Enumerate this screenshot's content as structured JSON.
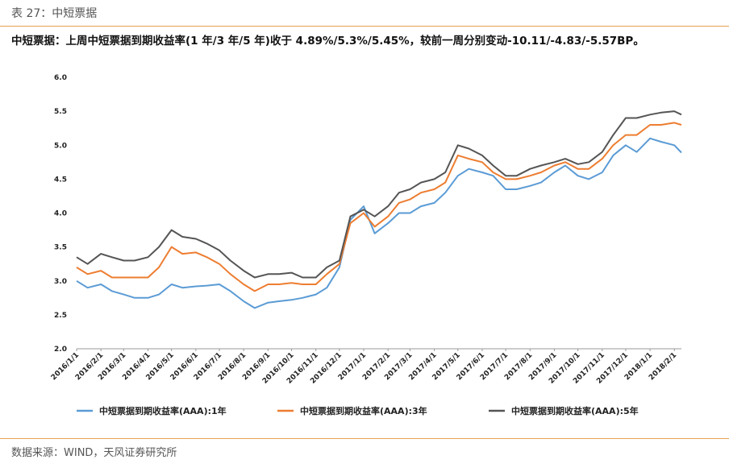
{
  "caption": "表 27：中短票据",
  "headline": "中短票据：上周中短票据到期收益率(1 年/3 年/5 年)收于 4.89%/5.3%/5.45%，较前一周分别变动-10.11/-4.83/-5.57BP。",
  "source": "数据来源：WIND，天风证券研究所",
  "colors": {
    "series1": "#5b9bd5",
    "series2": "#ed7d31",
    "series3": "#555555"
  },
  "chart_data": {
    "type": "line",
    "title": "",
    "xlabel": "",
    "ylabel": "",
    "ylim": [
      2.0,
      6.0
    ],
    "yticks": [
      "6.0",
      "5.5",
      "5.0",
      "4.5",
      "4.0",
      "3.5",
      "3.0",
      "2.5",
      "2.0"
    ],
    "x_ticks": [
      "2016/1/1",
      "2016/2/1",
      "2016/3/1",
      "2016/4/1",
      "2016/5/1",
      "2016/6/1",
      "2016/7/1",
      "2016/8/1",
      "2016/9/1",
      "2016/10/1",
      "2016/11/1",
      "2016/12/1",
      "2017/1/1",
      "2017/2/1",
      "2017/3/1",
      "2017/4/1",
      "2017/5/1",
      "2017/6/1",
      "2017/7/1",
      "2017/8/1",
      "2017/9/1",
      "2017/10/1",
      "2017/11/1",
      "2017/12/1",
      "2018/1/1",
      "2018/2/1"
    ],
    "x": [
      "2016/1/1",
      "2016/1/15",
      "2016/2/1",
      "2016/2/15",
      "2016/3/1",
      "2016/3/15",
      "2016/4/1",
      "2016/4/15",
      "2016/5/1",
      "2016/5/15",
      "2016/6/1",
      "2016/6/15",
      "2016/7/1",
      "2016/7/15",
      "2016/8/1",
      "2016/8/15",
      "2016/9/1",
      "2016/9/15",
      "2016/10/1",
      "2016/10/15",
      "2016/11/1",
      "2016/11/15",
      "2016/12/1",
      "2016/12/15",
      "2017/1/1",
      "2017/1/15",
      "2017/2/1",
      "2017/2/15",
      "2017/3/1",
      "2017/3/15",
      "2017/4/1",
      "2017/4/15",
      "2017/5/1",
      "2017/5/15",
      "2017/6/1",
      "2017/6/15",
      "2017/7/1",
      "2017/7/15",
      "2017/8/1",
      "2017/8/15",
      "2017/9/1",
      "2017/9/15",
      "2017/10/1",
      "2017/10/15",
      "2017/11/1",
      "2017/11/15",
      "2017/12/1",
      "2017/12/15",
      "2018/1/1",
      "2018/1/15",
      "2018/2/1",
      "2018/2/10"
    ],
    "series": [
      {
        "name": "中短票据到期收益率(AAA):1年",
        "values": [
          3.0,
          2.9,
          2.95,
          2.85,
          2.8,
          2.75,
          2.75,
          2.8,
          2.95,
          2.9,
          2.92,
          2.93,
          2.95,
          2.85,
          2.7,
          2.6,
          2.68,
          2.7,
          2.72,
          2.75,
          2.8,
          2.9,
          3.2,
          3.9,
          4.1,
          3.7,
          3.85,
          4.0,
          4.0,
          4.1,
          4.15,
          4.3,
          4.55,
          4.65,
          4.6,
          4.55,
          4.35,
          4.35,
          4.4,
          4.45,
          4.6,
          4.7,
          4.55,
          4.5,
          4.6,
          4.85,
          5.0,
          4.9,
          5.1,
          5.05,
          5.0,
          4.89
        ]
      },
      {
        "name": "中短票据到期收益率(AAA):3年",
        "values": [
          3.2,
          3.1,
          3.15,
          3.05,
          3.05,
          3.05,
          3.05,
          3.2,
          3.5,
          3.4,
          3.42,
          3.35,
          3.25,
          3.1,
          2.95,
          2.85,
          2.95,
          2.95,
          2.97,
          2.95,
          2.95,
          3.1,
          3.25,
          3.85,
          4.0,
          3.8,
          3.95,
          4.15,
          4.2,
          4.3,
          4.35,
          4.45,
          4.85,
          4.8,
          4.75,
          4.6,
          4.5,
          4.5,
          4.55,
          4.6,
          4.7,
          4.75,
          4.65,
          4.65,
          4.8,
          5.0,
          5.15,
          5.15,
          5.3,
          5.3,
          5.33,
          5.3
        ]
      },
      {
        "name": "中短票据到期收益率(AAA):5年",
        "values": [
          3.35,
          3.25,
          3.4,
          3.35,
          3.3,
          3.3,
          3.35,
          3.5,
          3.75,
          3.65,
          3.62,
          3.55,
          3.45,
          3.3,
          3.15,
          3.05,
          3.1,
          3.1,
          3.12,
          3.05,
          3.05,
          3.2,
          3.3,
          3.95,
          4.05,
          3.95,
          4.1,
          4.3,
          4.35,
          4.45,
          4.5,
          4.6,
          5.0,
          4.95,
          4.85,
          4.7,
          4.55,
          4.55,
          4.65,
          4.7,
          4.75,
          4.8,
          4.72,
          4.75,
          4.9,
          5.15,
          5.4,
          5.4,
          5.45,
          5.48,
          5.5,
          5.45
        ]
      }
    ],
    "legend_position": "bottom",
    "grid": false
  }
}
